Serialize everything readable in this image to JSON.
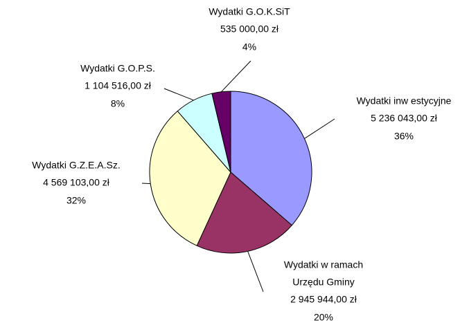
{
  "chart_data": {
    "type": "pie",
    "categories": [
      [
        "Wydatki inw estycyjne"
      ],
      [
        "Wydatki w  ramach",
        "Urzędu Gminy"
      ],
      [
        "Wydatki G.Z.E.A.Sz."
      ],
      [
        "Wydatki G.O.P.S."
      ],
      [
        "Wydatki G.O.K.SiT"
      ]
    ],
    "values": [
      5236043,
      2945944,
      4569103,
      1104516,
      535000
    ],
    "value_labels": [
      "5 236 043,00 zł",
      "2 945 944,00 zł",
      "4 569 103,00 zł",
      "1 104 516,00 zł",
      "535 000,00 zł"
    ],
    "percent_labels": [
      "36%",
      "20%",
      "32%",
      "8%",
      "4%"
    ],
    "colors": [
      "#9999ff",
      "#993366",
      "#ffffcc",
      "#ccffff",
      "#660066"
    ]
  }
}
